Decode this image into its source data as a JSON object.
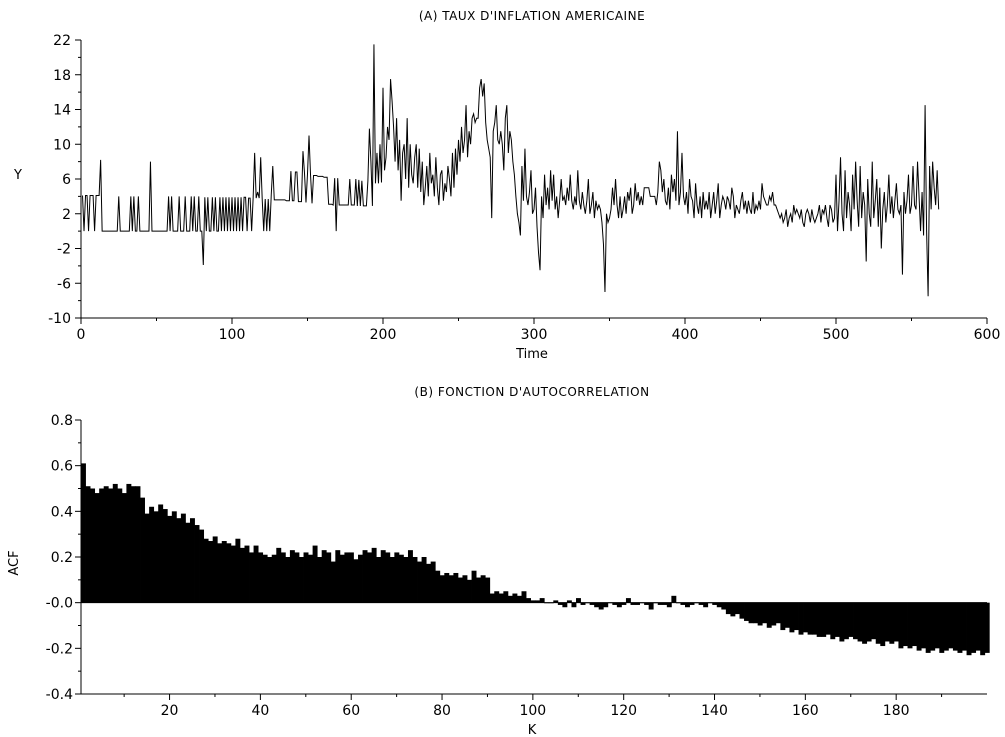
{
  "chart_data": [
    {
      "type": "line",
      "title": "(A) TAUX D'INFLATION AMERICAINE",
      "xlabel": "Time",
      "ylabel": "Y",
      "xlim": [
        0,
        600
      ],
      "ylim": [
        -10,
        22
      ],
      "xticks": [
        0,
        100,
        200,
        300,
        400,
        500,
        600
      ],
      "yticks": [
        -10,
        -6,
        -2,
        2,
        6,
        10,
        14,
        18,
        22
      ],
      "grid": false,
      "series": [
        {
          "color": "#000000",
          "x_start": 1,
          "values": [
            4.1,
            0,
            4.1,
            4.1,
            0,
            4.1,
            4.1,
            4.1,
            0,
            4.1,
            4.1,
            4.1,
            8.2,
            0,
            0,
            0,
            0,
            0,
            0,
            0,
            0,
            0,
            0,
            0,
            4.0,
            0,
            0,
            0,
            0,
            0,
            0,
            0,
            4.0,
            0,
            4.0,
            0,
            0,
            4.0,
            0,
            0,
            0,
            0,
            0,
            0,
            0,
            8.0,
            0,
            0,
            0,
            0,
            0,
            0,
            0,
            0,
            0,
            0,
            0,
            4.0,
            0,
            4.0,
            0,
            0,
            0,
            0,
            4.0,
            0,
            0,
            0,
            4.0,
            0,
            0,
            0,
            4.0,
            0,
            4.0,
            0,
            0,
            4.0,
            0,
            0,
            -3.9,
            3.9,
            0,
            3.9,
            0,
            0,
            3.9,
            0,
            3.9,
            0,
            0,
            3.9,
            0,
            3.9,
            0,
            3.9,
            0,
            3.9,
            0,
            3.9,
            0,
            3.9,
            0,
            3.9,
            0,
            3.9,
            0,
            3.9,
            3.9,
            0,
            3.8,
            3.8,
            0,
            3.8,
            9.0,
            3.8,
            4.5,
            3.8,
            8.5,
            3.7,
            0,
            3.7,
            0,
            3.7,
            0,
            4.2,
            7.5,
            3.6,
            3.6,
            3.6,
            3.6,
            3.6,
            3.6,
            3.6,
            3.6,
            3.5,
            3.5,
            3.5,
            6.9,
            3.5,
            3.5,
            6.8,
            6.8,
            3.4,
            3.4,
            3.4,
            9.2,
            6.7,
            3.3,
            6.6,
            11.0,
            6.5,
            3.2,
            6.4,
            6.4,
            6.4,
            6.3,
            6.3,
            6.3,
            6.3,
            6.2,
            6.2,
            6.2,
            3.1,
            3.1,
            3.1,
            3.0,
            6.1,
            0,
            6.1,
            3.0,
            3.0,
            3.0,
            3.0,
            3.0,
            3.0,
            3.0,
            6.0,
            3.0,
            3.0,
            3.0,
            6.0,
            2.9,
            5.9,
            2.9,
            5.8,
            2.9,
            2.9,
            2.9,
            5.8,
            11.8,
            8.0,
            2.9,
            21.5,
            5.5,
            9.0,
            5.5,
            10.0,
            5.6,
            16.5,
            7.0,
            8.5,
            12.0,
            10.5,
            17.5,
            15.0,
            12.0,
            8.0,
            13.0,
            7.0,
            10.5,
            3.5,
            9.0,
            10.0,
            6.0,
            13.0,
            5.0,
            10.0,
            6.5,
            5.5,
            8.5,
            10.0,
            5.0,
            9.5,
            4.5,
            8.0,
            3.0,
            5.0,
            7.5,
            4.0,
            9.0,
            5.5,
            6.5,
            4.0,
            8.5,
            5.0,
            3.0,
            6.5,
            7.0,
            3.5,
            5.5,
            4.5,
            7.5,
            6.0,
            4.0,
            9.0,
            5.0,
            9.5,
            6.5,
            10.5,
            8.0,
            12.0,
            9.0,
            10.5,
            14.5,
            8.5,
            11.5,
            10.0,
            13.0,
            13.5,
            12.5,
            13.0,
            13.0,
            16.5,
            17.5,
            15.5,
            17.0,
            12.5,
            10.5,
            9.5,
            8.5,
            1.5,
            11.5,
            12.5,
            14.5,
            10.5,
            10.0,
            11.5,
            10.0,
            7.0,
            13.0,
            14.5,
            9.0,
            11.5,
            10.5,
            8.0,
            6.5,
            4.0,
            2.0,
            1.0,
            -0.5,
            7.5,
            3.5,
            9.5,
            4.0,
            3.0,
            4.5,
            7.0,
            2.0,
            2.5,
            5.0,
            0.5,
            -2.5,
            -4.5,
            4.0,
            1.5,
            6.5,
            3.0,
            5.0,
            2.5,
            7.0,
            3.5,
            6.5,
            2.5,
            4.0,
            1.5,
            3.5,
            6.0,
            3.5,
            4.0,
            3.0,
            5.0,
            3.5,
            6.5,
            3.5,
            2.5,
            4.0,
            3.0,
            7.0,
            3.5,
            2.5,
            4.5,
            3.0,
            2.0,
            3.5,
            6.0,
            2.0,
            3.0,
            4.5,
            1.5,
            3.5,
            2.5,
            3.0,
            2.5,
            1.0,
            -1.5,
            -7.0,
            2.0,
            1.0,
            1.5,
            2.5,
            5.0,
            3.0,
            6.0,
            3.0,
            1.5,
            4.0,
            1.5,
            2.5,
            4.0,
            2.0,
            4.5,
            3.5,
            5.0,
            2.0,
            3.0,
            5.5,
            3.5,
            4.5,
            3.0,
            4.0,
            3.0,
            5.0,
            5.0,
            5.0,
            5.0,
            4.0,
            4.0,
            4.0,
            4.0,
            3.0,
            4.5,
            8.0,
            7.0,
            4.5,
            6.0,
            3.5,
            3.0,
            5.0,
            2.5,
            6.5,
            4.5,
            6.0,
            3.5,
            11.5,
            3.0,
            4.5,
            9.0,
            4.0,
            3.0,
            4.5,
            2.0,
            6.0,
            4.0,
            3.5,
            1.5,
            5.5,
            3.0,
            2.0,
            4.0,
            1.5,
            4.5,
            2.5,
            3.5,
            2.5,
            4.5,
            1.5,
            3.0,
            4.5,
            2.0,
            3.5,
            5.5,
            1.5,
            3.0,
            4.0,
            3.5,
            2.5,
            4.0,
            3.5,
            2.5,
            5.0,
            4.0,
            1.5,
            3.0,
            2.5,
            2.0,
            3.5,
            4.5,
            2.5,
            3.5,
            2.0,
            3.5,
            2.5,
            2.0,
            4.5,
            2.0,
            3.0,
            2.5,
            3.5,
            2.5,
            5.5,
            4.0,
            3.5,
            3.0,
            3.0,
            4.0,
            3.5,
            4.5,
            3.0,
            3.0,
            2.5,
            2.0,
            1.5,
            2.0,
            1.0,
            1.5,
            2.5,
            0.5,
            1.5,
            2.0,
            1.0,
            3.0,
            2.0,
            2.5,
            2.0,
            1.5,
            2.5,
            1.0,
            0.5,
            2.0,
            2.5,
            2.0,
            1.0,
            2.5,
            1.5,
            1.0,
            1.5,
            2.0,
            3.0,
            1.0,
            2.5,
            2.0,
            3.0,
            1.5,
            0.5,
            3.0,
            2.5,
            1.0,
            1.5,
            6.5,
            0.0,
            3.5,
            8.5,
            2.0,
            0.0,
            7.0,
            1.5,
            4.5,
            3.0,
            0.0,
            6.5,
            2.5,
            8.0,
            3.5,
            0.5,
            7.5,
            1.5,
            4.5,
            3.0,
            -3.5,
            6.0,
            2.0,
            0.5,
            8.0,
            1.5,
            3.5,
            6.0,
            0.5,
            5.0,
            -2.0,
            2.5,
            4.5,
            1.0,
            3.0,
            6.5,
            2.0,
            4.0,
            1.5,
            3.5,
            5.5,
            2.5,
            2.0,
            3.0,
            -5.0,
            4.5,
            2.0,
            3.5,
            6.5,
            2.0,
            3.0,
            7.5,
            3.0,
            2.5,
            8.0,
            4.0,
            0.0,
            4.5,
            -0.5,
            14.5,
            0.0,
            -7.5,
            7.5,
            2.5,
            8.0,
            5.0,
            3.0,
            7.0,
            2.5
          ]
        }
      ]
    },
    {
      "type": "bar",
      "title": "(B) FONCTION D'AUTOCORRELATION",
      "xlabel": "K",
      "ylabel": "ACF",
      "xlim": [
        0.5,
        200
      ],
      "ylim": [
        -0.4,
        0.8
      ],
      "xticks": [
        20,
        40,
        60,
        80,
        100,
        120,
        140,
        160,
        180
      ],
      "yticks": [
        -0.4,
        -0.2,
        0.0,
        0.2,
        0.4,
        0.6,
        0.8
      ],
      "ytick_labels": [
        "-0.4",
        "-0.2",
        "-0.0",
        "0.2",
        "0.4",
        "0.6",
        "0.8"
      ],
      "grid": false,
      "x_start": 1,
      "values": [
        0.61,
        0.51,
        0.5,
        0.48,
        0.5,
        0.51,
        0.5,
        0.52,
        0.5,
        0.48,
        0.52,
        0.51,
        0.51,
        0.46,
        0.39,
        0.42,
        0.4,
        0.43,
        0.41,
        0.38,
        0.4,
        0.37,
        0.39,
        0.35,
        0.37,
        0.34,
        0.32,
        0.28,
        0.27,
        0.29,
        0.26,
        0.27,
        0.26,
        0.25,
        0.28,
        0.24,
        0.25,
        0.22,
        0.25,
        0.22,
        0.21,
        0.2,
        0.21,
        0.24,
        0.22,
        0.2,
        0.23,
        0.22,
        0.2,
        0.22,
        0.21,
        0.25,
        0.2,
        0.23,
        0.22,
        0.18,
        0.23,
        0.21,
        0.22,
        0.22,
        0.19,
        0.21,
        0.23,
        0.22,
        0.24,
        0.2,
        0.23,
        0.22,
        0.2,
        0.22,
        0.21,
        0.2,
        0.23,
        0.2,
        0.18,
        0.2,
        0.17,
        0.18,
        0.14,
        0.12,
        0.13,
        0.12,
        0.13,
        0.11,
        0.12,
        0.1,
        0.14,
        0.11,
        0.12,
        0.11,
        0.04,
        0.05,
        0.04,
        0.05,
        0.03,
        0.04,
        0.03,
        0.05,
        0.02,
        0.01,
        0.01,
        0.02,
        0.0,
        0.0,
        0.01,
        -0.01,
        -0.02,
        0.01,
        -0.02,
        0.02,
        -0.01,
        0.0,
        -0.01,
        -0.02,
        -0.03,
        -0.02,
        0.0,
        -0.01,
        -0.02,
        -0.01,
        0.02,
        -0.01,
        -0.01,
        0.0,
        -0.01,
        -0.03,
        0.0,
        -0.01,
        -0.01,
        -0.02,
        0.03,
        0.0,
        -0.01,
        -0.02,
        -0.01,
        0.0,
        -0.01,
        -0.02,
        0.0,
        -0.01,
        -0.02,
        -0.03,
        -0.05,
        -0.06,
        -0.05,
        -0.07,
        -0.08,
        -0.09,
        -0.09,
        -0.1,
        -0.09,
        -0.11,
        -0.1,
        -0.09,
        -0.12,
        -0.11,
        -0.13,
        -0.12,
        -0.14,
        -0.13,
        -0.14,
        -0.14,
        -0.15,
        -0.15,
        -0.14,
        -0.16,
        -0.15,
        -0.17,
        -0.16,
        -0.15,
        -0.16,
        -0.17,
        -0.18,
        -0.17,
        -0.16,
        -0.18,
        -0.19,
        -0.17,
        -0.18,
        -0.17,
        -0.2,
        -0.19,
        -0.2,
        -0.19,
        -0.21,
        -0.2,
        -0.22,
        -0.21,
        -0.2,
        -0.22,
        -0.21,
        -0.2,
        -0.21,
        -0.22,
        -0.21,
        -0.23,
        -0.22,
        -0.21,
        -0.23,
        -0.22
      ]
    }
  ]
}
